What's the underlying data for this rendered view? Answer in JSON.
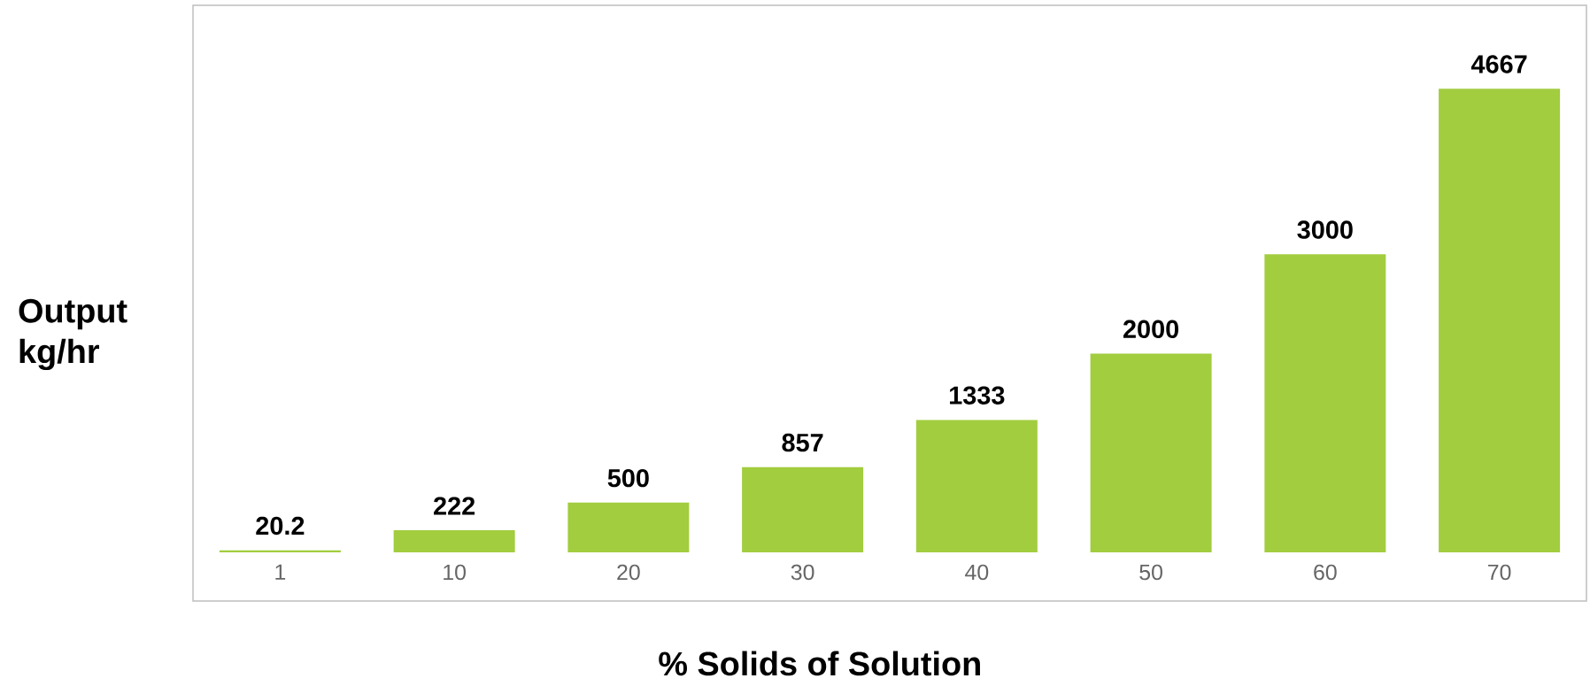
{
  "chart_data": {
    "type": "bar",
    "xlabel": "% Solids of Solution",
    "ylabel": "Output kg/hr",
    "categories": [
      "1",
      "10",
      "20",
      "30",
      "40",
      "50",
      "60",
      "70"
    ],
    "values": [
      20.2,
      222,
      500,
      857,
      1333,
      2000,
      3000,
      4667
    ],
    "color": "#a2cd3f",
    "data_labels": true
  }
}
